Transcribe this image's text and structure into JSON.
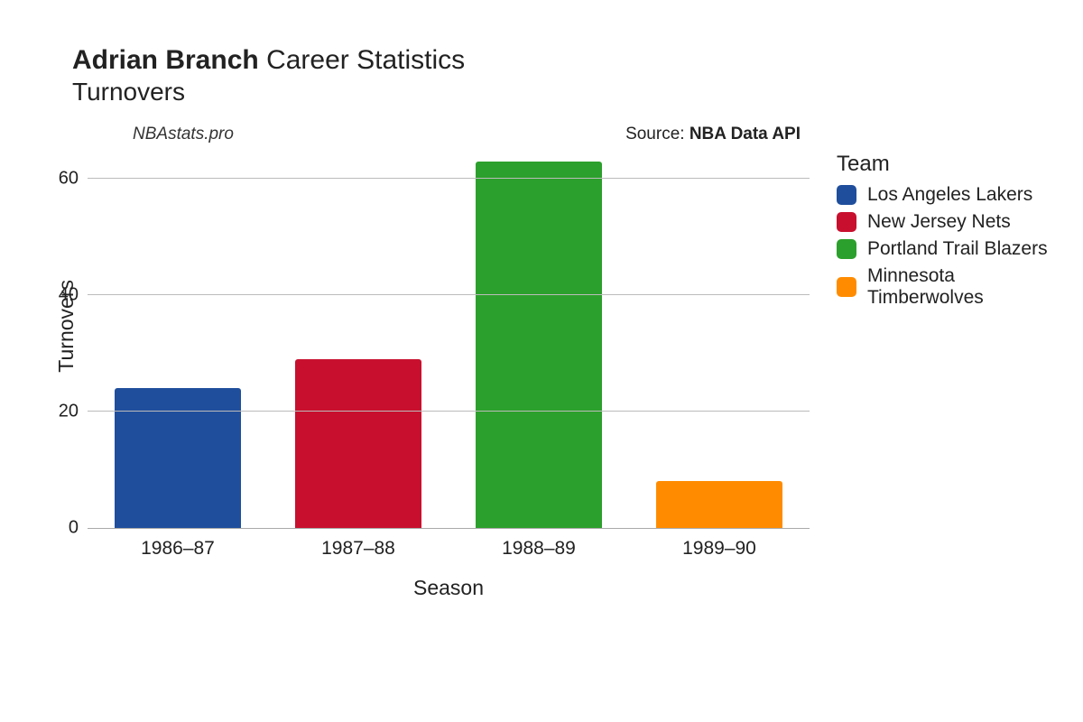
{
  "title": {
    "player": "Adrian Branch",
    "suffix": "Career Statistics",
    "subtitle": "Turnovers"
  },
  "watermark": "NBAstats.pro",
  "source_prefix": "Source: ",
  "source_name": "NBA Data API",
  "chart": {
    "type": "bar",
    "xlabel": "Season",
    "ylabel": "Turnovers",
    "ylim": [
      0,
      65
    ],
    "yticks": [
      0,
      20,
      40,
      60
    ],
    "background_color": "#ffffff",
    "grid_color": "#bbbbbb",
    "bar_width_pct": 70,
    "bar_border_radius": 3,
    "categories": [
      "1986–87",
      "1987–88",
      "1988–89",
      "1989–90"
    ],
    "values": [
      24,
      29,
      63,
      8
    ],
    "bar_colors": [
      "#1f4e9c",
      "#c8102e",
      "#2ca02c",
      "#ff8c00"
    ]
  },
  "legend": {
    "title": "Team",
    "items": [
      {
        "label": "Los Angeles Lakers",
        "color": "#1f4e9c"
      },
      {
        "label": "New Jersey Nets",
        "color": "#c8102e"
      },
      {
        "label": "Portland Trail Blazers",
        "color": "#2ca02c"
      },
      {
        "label": "Minnesota Timberwolves",
        "color": "#ff8c00"
      }
    ]
  },
  "typography": {
    "title_fontsize": 30,
    "subtitle_fontsize": 28,
    "axis_label_fontsize": 23,
    "tick_fontsize": 20,
    "legend_title_fontsize": 24,
    "legend_item_fontsize": 21
  }
}
